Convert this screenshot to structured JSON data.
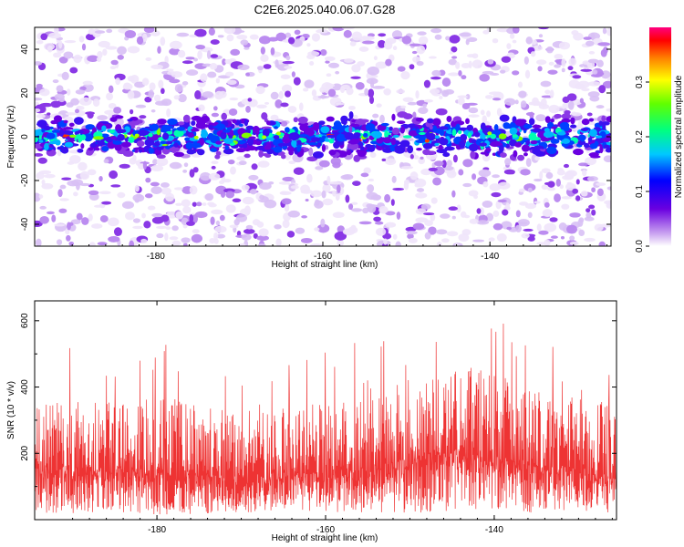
{
  "title": "C2E6.2025.040.06.07.G28",
  "chart_data": [
    {
      "type": "heatmap",
      "xlabel": "Height of straight line (km)",
      "ylabel": "Frequency (Hz)",
      "xlim": [
        -194.5,
        -125.5
      ],
      "ylim": [
        -50,
        50
      ],
      "x_ticks": [
        -180,
        -160,
        -140
      ],
      "x_tick_labels": [
        "-180",
        "-160",
        "-140"
      ],
      "y_ticks": [
        -40,
        -20,
        0,
        20,
        40
      ],
      "y_tick_labels": [
        "-40",
        "-20",
        "0",
        "20",
        "40"
      ],
      "signal_band_hz": [
        -10,
        10
      ],
      "colormap": "rainbow (white-violet-blue-cyan-green-yellow-red-magenta)",
      "colorbar": {
        "label": "Normalized spectral amplitude",
        "range": [
          0,
          0.4
        ],
        "ticks": [
          0.0,
          0.1,
          0.2,
          0.3
        ],
        "tick_labels": [
          "0.0",
          "0.1",
          "0.2",
          "0.3"
        ]
      },
      "grid": false
    },
    {
      "type": "line",
      "xlabel": "Height of straight line (km)",
      "ylabel": "SNR (10 * v/v)",
      "xlim": [
        -194.5,
        -125.5
      ],
      "ylim": [
        0,
        660
      ],
      "x_ticks": [
        -180,
        -160,
        -140
      ],
      "x_tick_labels": [
        "-180",
        "-160",
        "-140"
      ],
      "y_ticks": [
        200,
        400,
        600
      ],
      "y_tick_labels": [
        "200",
        "400",
        "600"
      ],
      "color": "#ee3333",
      "envelope": {
        "x": [
          -194.5,
          -190,
          -185,
          -180,
          -175,
          -170,
          -165,
          -160,
          -155,
          -150,
          -145,
          -140,
          -135,
          -130,
          -125.5
        ],
        "upper": [
          430,
          440,
          430,
          470,
          420,
          400,
          420,
          430,
          450,
          470,
          560,
          560,
          470,
          450,
          430
        ],
        "baseline": [
          120,
          120,
          120,
          115,
          110,
          105,
          110,
          110,
          120,
          140,
          160,
          150,
          130,
          120,
          110
        ],
        "lower": [
          20,
          20,
          20,
          15,
          15,
          20,
          25,
          20,
          20,
          20,
          25,
          30,
          20,
          25,
          20
        ]
      },
      "grid": false
    }
  ]
}
